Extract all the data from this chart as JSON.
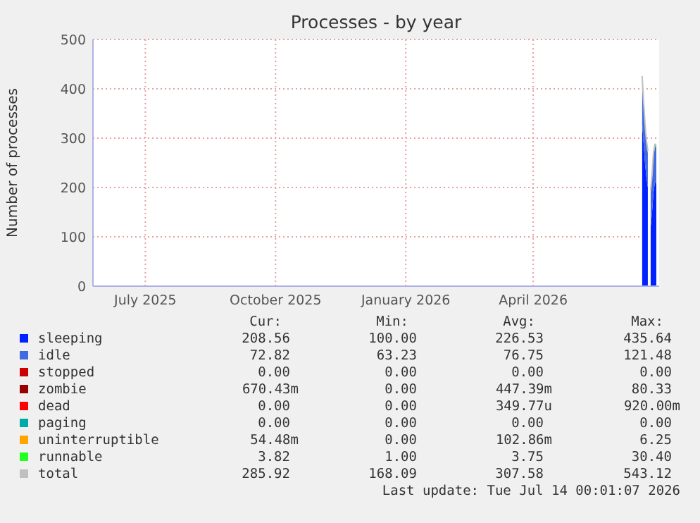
{
  "chart_data": {
    "type": "area",
    "stacked": true,
    "title": "Processes - by year",
    "ylabel": "Number of processes",
    "x": [
      "2026-07-02",
      "2026-07-03",
      "2026-07-04",
      "2026-07-05",
      "2026-07-06",
      "2026-07-07",
      "2026-07-08",
      "2026-07-09",
      "2026-07-10",
      "2026-07-11",
      "2026-07-12"
    ],
    "xlim": [
      "2025-06-09",
      "2026-07-14"
    ],
    "xticks": [
      {
        "value": "2025-07-16",
        "label": "July 2025"
      },
      {
        "value": "2025-10-16",
        "label": "October 2025"
      },
      {
        "value": "2026-01-16",
        "label": "January 2026"
      },
      {
        "value": "2026-04-16",
        "label": "April 2026"
      }
    ],
    "ylim": [
      0,
      500
    ],
    "yticks": [
      0,
      100,
      200,
      300,
      400,
      500
    ],
    "grid": true,
    "legend": "bottom",
    "series": [
      {
        "name": "sleeping",
        "color": "#0022ff",
        "values": [
          330,
          290,
          250,
          220,
          200,
          null,
          120,
          150,
          190,
          210,
          209
        ]
      },
      {
        "name": "idle",
        "color": "#4169e1",
        "values": [
          90,
          80,
          75,
          72,
          70,
          null,
          70,
          72,
          75,
          73,
          73
        ]
      },
      {
        "name": "stopped",
        "color": "#cc0000",
        "values": [
          null,
          null,
          null,
          null,
          null,
          null,
          null,
          null,
          null,
          null,
          null
        ]
      },
      {
        "name": "zombie",
        "color": "#990000",
        "values": [
          null,
          null,
          null,
          null,
          null,
          null,
          null,
          null,
          null,
          null,
          null
        ]
      },
      {
        "name": "dead",
        "color": "#ff0000",
        "values": [
          null,
          null,
          null,
          null,
          null,
          null,
          null,
          null,
          null,
          null,
          null
        ]
      },
      {
        "name": "paging",
        "color": "#00aaaa",
        "values": [
          null,
          null,
          null,
          null,
          null,
          null,
          null,
          null,
          null,
          null,
          null
        ]
      },
      {
        "name": "uninterruptible",
        "color": "#ffa500",
        "values": [
          null,
          null,
          null,
          null,
          null,
          null,
          null,
          null,
          null,
          null,
          null
        ]
      },
      {
        "name": "runnable",
        "color": "#22ff22",
        "values": [
          5,
          4,
          4,
          4,
          4,
          null,
          4,
          4,
          4,
          4,
          4
        ]
      },
      {
        "name": "total",
        "type": "line",
        "color": "#c0c0c0",
        "values": [
          426,
          375,
          329,
          296,
          274,
          null,
          194,
          227,
          270,
          288,
          287
        ]
      }
    ],
    "annotations": [
      "Cur:",
      "Min:",
      "Avg:",
      "Max:",
      "208.56",
      "100.00",
      "226.53",
      "435.64",
      "72.82",
      "63.23",
      "76.75",
      "121.48",
      "0.00",
      "0.00",
      "0.00",
      "0.00",
      "670.43m",
      "0.00",
      "447.39m",
      "80.33",
      "0.00",
      "0.00",
      "349.77u",
      "920.00m",
      "0.00",
      "0.00",
      "0.00",
      "0.00",
      "54.48m",
      "0.00",
      "102.86m",
      "6.25",
      "3.82",
      "1.00",
      "3.75",
      "30.40",
      "285.92",
      "168.09",
      "307.58",
      "543.12",
      "Last update: Tue Jul 14 00:01:07 2026"
    ]
  }
}
